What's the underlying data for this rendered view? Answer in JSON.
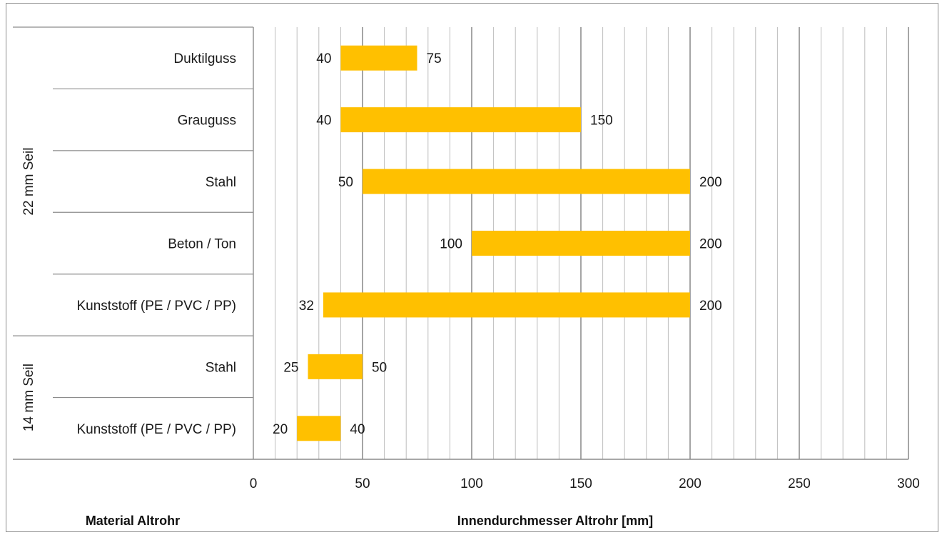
{
  "chart_data": {
    "type": "bar",
    "orientation": "horizontal-range",
    "xlabel": "Innendurchmesser Altrohr [mm]",
    "ylabel": "Material Altrohr",
    "xlim": [
      0,
      300
    ],
    "x_ticks": [
      0,
      50,
      100,
      150,
      200,
      250,
      300
    ],
    "minor_grid_step": 10,
    "bar_color": "#FFC000",
    "groups": [
      {
        "name": "22 mm Seil",
        "count": 5
      },
      {
        "name": "14 mm Seil",
        "count": 2
      }
    ],
    "rows": [
      {
        "category": "Duktilguss",
        "min": 40,
        "max": 75,
        "min_label": "40",
        "max_label": "75"
      },
      {
        "category": "Grauguss",
        "min": 40,
        "max": 150,
        "min_label": "40",
        "max_label": "150"
      },
      {
        "category": "Stahl",
        "min": 50,
        "max": 200,
        "min_label": "50",
        "max_label": "200"
      },
      {
        "category": "Beton / Ton",
        "min": 100,
        "max": 200,
        "min_label": "100",
        "max_label": "200"
      },
      {
        "category": "Kunststoff (PE / PVC / PP)",
        "min": 32,
        "max": 200,
        "min_label": "32",
        "max_label": "200"
      },
      {
        "category": "Stahl",
        "min": 25,
        "max": 50,
        "min_label": "25",
        "max_label": "50"
      },
      {
        "category": "Kunststoff (PE / PVC / PP)",
        "min": 20,
        "max": 40,
        "min_label": "20",
        "max_label": "40"
      }
    ]
  }
}
